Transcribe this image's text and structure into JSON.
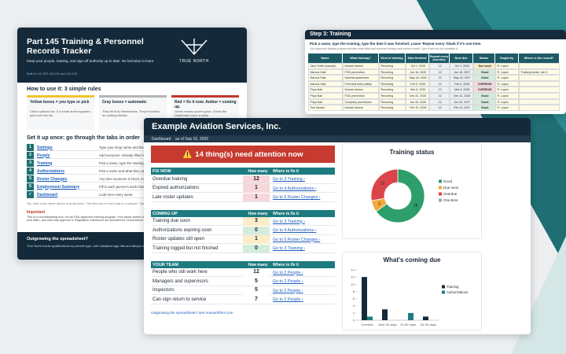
{
  "tracker": {
    "title": "Part 145 Training & Personnel Records Tracker",
    "intro": "Keep your people, training, and sign-off authority up to date. No formulas to learn.",
    "built_for": "Built for 14 CFR 145.151 and 145.163",
    "logo": "TRUE NORTH",
    "rules_heading": "How to use it: 3 simple rules",
    "rules": [
      {
        "title": "Yellow boxes = you type or pick",
        "text": "Click a yellow box. If a small arrow appears, pick from the list.",
        "color": "#f2c230"
      },
      {
        "title": "Gray boxes = automatic",
        "text": "They fill in by themselves. They're locked so nothing breaks.",
        "color": "#b5b5b5"
      },
      {
        "title": "Red = fix it now. Amber = coming up.",
        "text": "Green means you're good. Check the Dashboard once a week.",
        "color": "#c0392b"
      }
    ],
    "setup_heading": "Set it up once: go through the tabs in order",
    "steps": [
      {
        "num": "1",
        "tab": "Settings",
        "text": "Type your shop name and the date."
      },
      {
        "num": "2",
        "tab": "People",
        "text": "Add everyone. Already-filled rows are samples."
      },
      {
        "num": "3",
        "tab": "Training",
        "text": "Pick a name, type the training and the date."
      },
      {
        "num": "4",
        "tab": "Authorizations",
        "text": "Pick a name and what they can sign off."
      },
      {
        "num": "5",
        "tab": "Roster Changes",
        "text": "Any time someone is hired, moved or leaves."
      },
      {
        "num": "6",
        "tab": "Employment Summary",
        "text": "Fill in each person's work history."
      },
      {
        "num": "✓",
        "tab": "Dashboard",
        "text": "Look here every week."
      }
    ],
    "tip": "Tip: click a tab name above to jump there. The first row on each tab is a sample. Type over it.",
    "important_heading": "Important",
    "important_text": "This is a recordkeeping tool, not an FAA-approved training program. Your repair station manual and your training program still decide what training you need, how often, and who may approve it. Regulation references are provided for convenience only.",
    "footer_heading": "Outgrowing the spreadsheet?",
    "footer_text": "True North tracks qualifications by aircraft type, with validated sign-offs and tamper-evident records."
  },
  "training_sheet": {
    "title": "Step 3: Training",
    "instruction": "Pick a name, type the training, type the date it was finished. Leave 'Repeat every' blank if it's one-time.",
    "note": "Your approved training program decides what initial and recurrent training each person needs. Type it here as you complete it.",
    "columns": [
      "Name",
      "What training?",
      "Kind of training",
      "Date finished",
      "Repeat every (months)",
      "Next due",
      "Status",
      "Taught by",
      "Where is the record?"
    ],
    "rows": [
      [
        "Jane Smith (sample)",
        "Human factors",
        "Recurring",
        "Oct 1, 2025",
        "12",
        "Oct 1, 2026",
        "Due soon",
        "R. Lopez",
        ""
      ],
      [
        "Marcus Hale",
        "FOD prevention",
        "Recurring",
        "Jun 18, 2026",
        "12",
        "Jun 18, 2027",
        "Good",
        "R. Lopez",
        "Training binder, tab 3"
      ],
      [
        "Marcus Hale",
        "Hazmat awareness",
        "Recurring",
        "May 18, 2026",
        "12",
        "May 18, 2027",
        "Good",
        "R. Lopez",
        ""
      ],
      [
        "Marcus Hale",
        "Fuel tank entry safety",
        "Recurring",
        "Feb 5, 2025",
        "12",
        "Feb 5, 2026",
        "OVERDUE",
        "R. Lopez",
        ""
      ],
      [
        "Priya Nair",
        "Human factors",
        "Recurring",
        "Mar 8, 2025",
        "12",
        "Mar 8, 2026",
        "OVERDUE",
        "R. Lopez",
        ""
      ],
      [
        "Priya Nair",
        "FOD prevention",
        "Recurring",
        "Dec 31, 2025",
        "12",
        "Dec 31, 2026",
        "Good",
        "R. Lopez",
        ""
      ],
      [
        "Priya Nair",
        "Company procedures",
        "Recurring",
        "Jun 30, 2026",
        "12",
        "Jun 30, 2027",
        "Good",
        "R. Lopez",
        ""
      ],
      [
        "Tom Becker",
        "Human factors",
        "Recurring",
        "Feb 10, 2026",
        "12",
        "Feb 10, 2027",
        "Good",
        "R. Lopez",
        ""
      ]
    ],
    "status_colors": [
      "#fdecc8",
      "#d4edda",
      "#d4edda",
      "#f8d7da",
      "#f8d7da",
      "#d4edda",
      "#d4edda",
      "#d4edda"
    ]
  },
  "dashboard": {
    "company": "Example Aviation Services, Inc.",
    "tab": "Dashboard",
    "as_of": "as of Sep 16, 2026",
    "alert_icon": "⚠️",
    "alert": "14 thing(s) need attention now",
    "sections": [
      {
        "title": "FIX NOW",
        "count_header": "How many",
        "where_header": "Where to fix it",
        "rows": [
          {
            "label": "Overdue training",
            "count": 12,
            "link": "Go to 3 Training ›",
            "color": "#f8d7da"
          },
          {
            "label": "Expired authorizations",
            "count": 1,
            "link": "Go to 4 Authorizations ›",
            "color": "#f8d7da"
          },
          {
            "label": "Late roster updates",
            "count": 1,
            "link": "Go to 5 Roster Changes ›",
            "color": "#f8d7da"
          }
        ]
      },
      {
        "title": "COMING UP",
        "count_header": "How many",
        "where_header": "Where to fix it",
        "rows": [
          {
            "label": "Training due soon",
            "count": 3,
            "link": "Go to 3 Training ›",
            "color": "#fdecc8"
          },
          {
            "label": "Authorizations expiring soon",
            "count": 0,
            "link": "Go to 4 Authorizations ›",
            "color": "#d4edda"
          },
          {
            "label": "Roster updates still open",
            "count": 1,
            "link": "Go to 5 Roster Changes ›",
            "color": "#fdecc8"
          },
          {
            "label": "Training logged but not finished",
            "count": 0,
            "link": "Go to 3 Training ›",
            "color": "#d4edda"
          }
        ]
      },
      {
        "title": "YOUR TEAM",
        "count_header": "How many",
        "where_header": "Where to fix it",
        "rows": [
          {
            "label": "People who still work here",
            "count": 12,
            "link": "Go to 2 People ›",
            "color": "#ffffff"
          },
          {
            "label": "Managers and supervisors",
            "count": 5,
            "link": "Go to 2 People ›",
            "color": "#ffffff"
          },
          {
            "label": "Inspectors",
            "count": 5,
            "link": "Go to 2 People ›",
            "color": "#ffffff"
          },
          {
            "label": "Can sign return to service",
            "count": 7,
            "link": "Go to 2 People ›",
            "color": "#ffffff"
          }
        ]
      }
    ],
    "footer": "Outgrowing the spreadsheet? See truenorthfms.com"
  },
  "chart_data": [
    {
      "type": "pie",
      "title": "Training status",
      "categories": [
        "Good",
        "Due soon",
        "Overdue",
        "One-time"
      ],
      "values": [
        28,
        3,
        12,
        0
      ],
      "colors": [
        "#2e9e6a",
        "#f2a93b",
        "#d9454a",
        "#9aa7b4"
      ],
      "donut": true
    },
    {
      "type": "bar",
      "title": "What's coming due",
      "categories": [
        "Overdue",
        "Next 30 days",
        "31-60 days",
        "61-90 days"
      ],
      "series": [
        {
          "name": "Training",
          "color": "#142a3a",
          "values": [
            12,
            3,
            0,
            1
          ]
        },
        {
          "name": "Authorizations",
          "color": "#1d7b80",
          "values": [
            1,
            0,
            2,
            0
          ]
        }
      ],
      "ylim": [
        0,
        14
      ],
      "yticks": [
        0,
        2,
        4,
        6,
        8,
        10,
        12,
        14
      ]
    }
  ]
}
